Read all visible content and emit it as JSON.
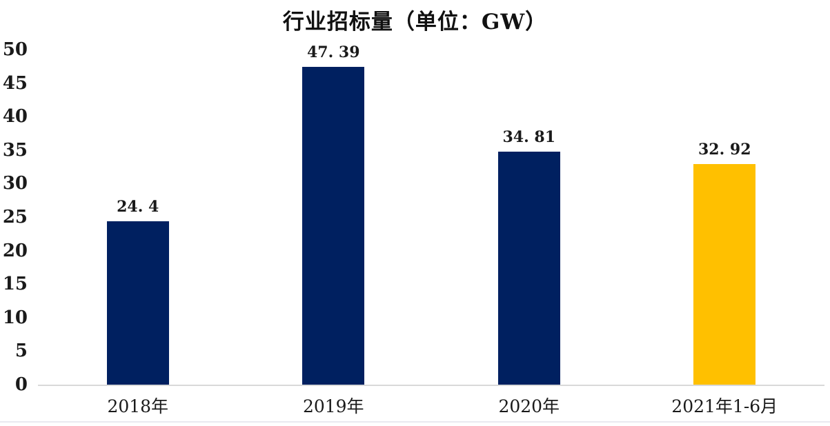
{
  "chart_data": {
    "type": "bar",
    "title": "行业招标量（单位：GW）",
    "categories": [
      "2018年",
      "2019年",
      "2020年",
      "2021年1-6月"
    ],
    "values": [
      24.4,
      47.39,
      34.81,
      32.92
    ],
    "value_labels": [
      "24. 4",
      "47. 39",
      "34. 81",
      "32. 92"
    ],
    "bar_colors": [
      "#002060",
      "#002060",
      "#002060",
      "#FFC000"
    ],
    "yticks": [
      0,
      5,
      10,
      15,
      20,
      25,
      30,
      35,
      40,
      45,
      50
    ],
    "ylim": [
      0,
      50
    ],
    "xlabel": "",
    "ylabel": "",
    "grid": false,
    "legend_position": "none",
    "axis_line_color": "#d9d9d9",
    "accent_color_navy": "#002060",
    "accent_color_gold": "#FFC000"
  }
}
